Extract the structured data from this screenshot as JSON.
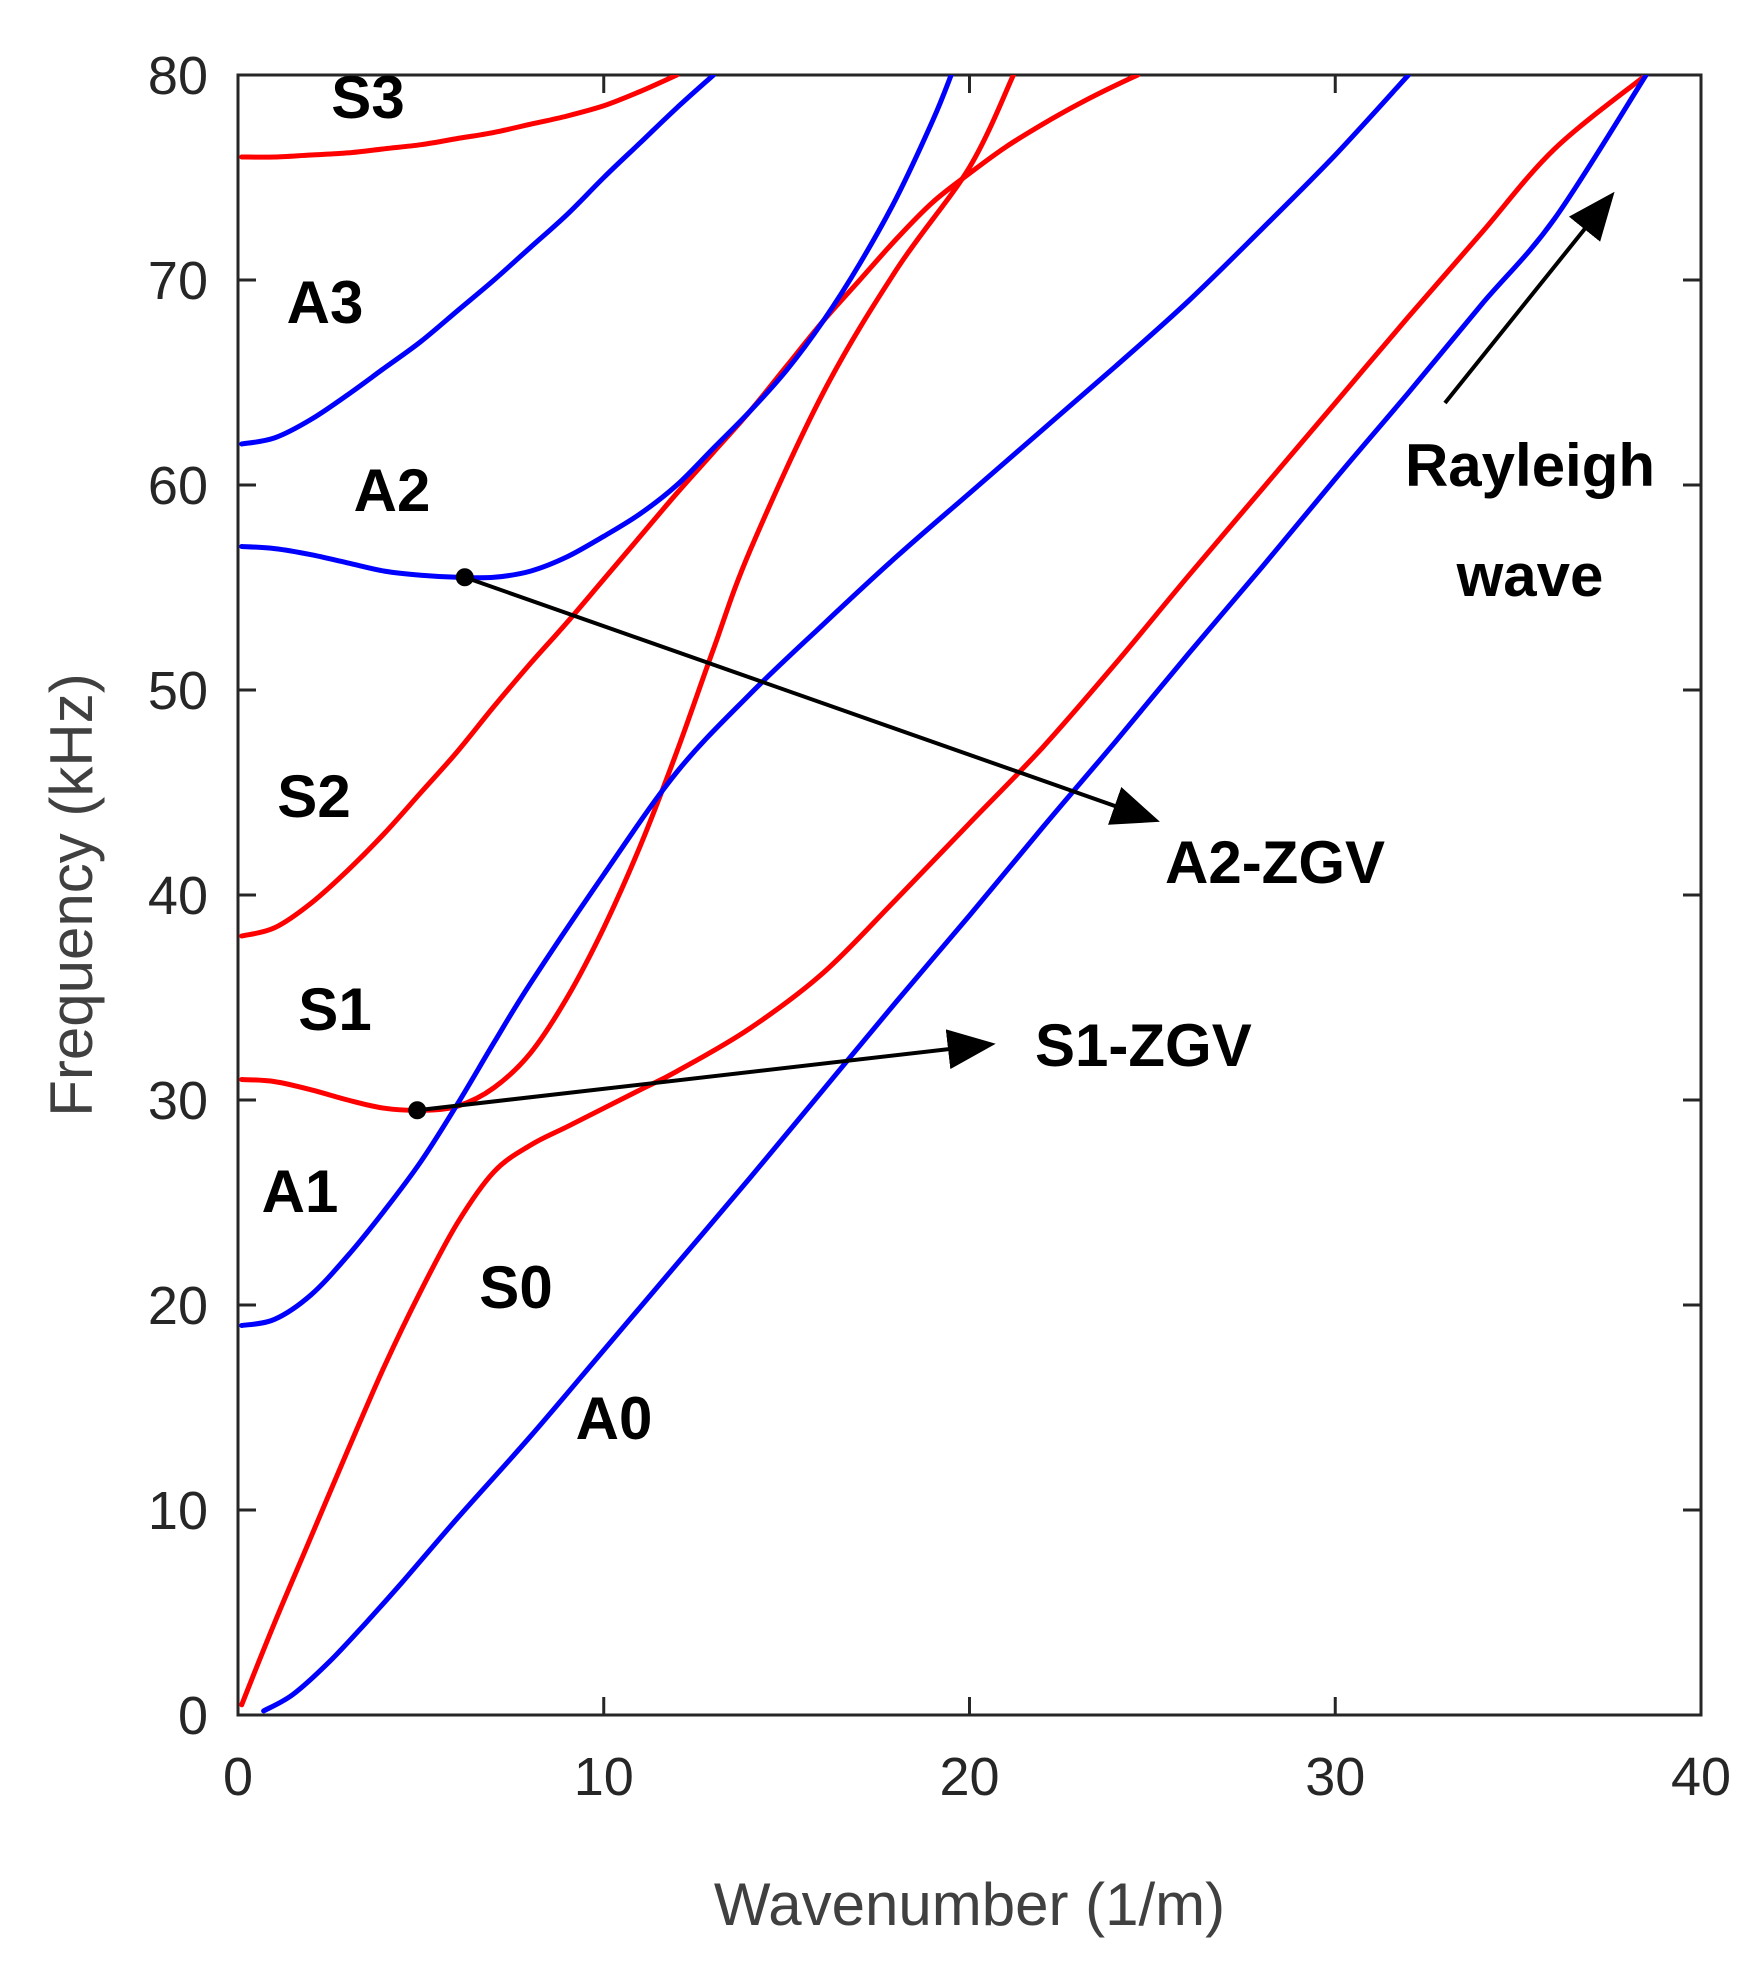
{
  "chart_data": {
    "type": "line",
    "title": "",
    "xlabel": "Wavenumber (1/m)",
    "ylabel": "Frequency (kHz)",
    "xlim": [
      0,
      40
    ],
    "ylim": [
      0,
      80
    ],
    "xticks": [
      0,
      10,
      20,
      30,
      40
    ],
    "yticks": [
      0,
      10,
      20,
      30,
      40,
      50,
      60,
      70,
      80
    ],
    "grid": false,
    "colors": {
      "symmetric": "#ff0000",
      "antisymmetric": "#0000ff",
      "annotation": "#000000",
      "axis": "#262626"
    },
    "series": [
      {
        "name": "S0",
        "family": "symmetric",
        "label": "S0",
        "x": [
          0.1,
          1,
          2,
          3,
          4,
          5,
          6,
          7,
          8,
          9,
          10,
          11,
          12,
          14,
          16,
          18,
          20,
          22,
          24,
          26,
          28,
          30,
          32,
          34,
          36,
          38.5
        ],
        "y": [
          0.5,
          4.5,
          8.7,
          12.9,
          17.0,
          20.7,
          24.0,
          26.5,
          27.8,
          28.7,
          29.6,
          30.5,
          31.4,
          33.5,
          36.2,
          39.8,
          43.5,
          47.2,
          51.3,
          55.6,
          59.8,
          64.0,
          68.2,
          72.3,
          76.4,
          80.0
        ]
      },
      {
        "name": "A0",
        "family": "antisymmetric",
        "label": "A0",
        "x": [
          0.7,
          1.5,
          2.5,
          3.5,
          4.5,
          6,
          8,
          10,
          12,
          14,
          16,
          18,
          20,
          22,
          24,
          26,
          28,
          30,
          32,
          34,
          36,
          38.5
        ],
        "y": [
          0.2,
          1.0,
          2.6,
          4.5,
          6.5,
          9.6,
          13.6,
          17.8,
          22.0,
          26.2,
          30.5,
          34.8,
          39.0,
          43.3,
          47.5,
          51.8,
          56.0,
          60.3,
          64.5,
          68.8,
          73.0,
          80.0
        ]
      },
      {
        "name": "S1",
        "family": "symmetric",
        "label": "S1",
        "x": [
          0.1,
          1,
          2,
          3,
          4,
          5,
          6,
          7,
          8,
          9,
          10,
          11,
          12,
          13,
          14,
          16,
          18,
          20,
          21.2
        ],
        "y": [
          31.0,
          30.9,
          30.5,
          30.0,
          29.6,
          29.5,
          29.7,
          30.6,
          32.3,
          35.0,
          38.4,
          42.4,
          47.0,
          52.0,
          56.8,
          64.5,
          70.5,
          75.5,
          80.0
        ]
      },
      {
        "name": "A1",
        "family": "antisymmetric",
        "label": "A1",
        "x": [
          0.1,
          1,
          2,
          3,
          4,
          5,
          6,
          7,
          8,
          10,
          12,
          14,
          16,
          18,
          20,
          22,
          24,
          26,
          28,
          30,
          32
        ],
        "y": [
          19.0,
          19.3,
          20.5,
          22.4,
          24.6,
          27.0,
          29.8,
          32.8,
          35.7,
          41.0,
          46.0,
          49.8,
          53.2,
          56.5,
          59.6,
          62.7,
          65.8,
          69.0,
          72.5,
          76.1,
          80.0
        ]
      },
      {
        "name": "S2",
        "family": "symmetric",
        "label": "S2",
        "x": [
          0.1,
          1,
          2,
          3,
          4,
          5,
          6,
          7,
          8,
          9,
          10,
          11,
          12,
          13,
          14,
          15,
          16,
          17,
          18,
          19,
          20,
          21,
          22,
          23,
          24,
          24.6
        ],
        "y": [
          38.0,
          38.4,
          39.6,
          41.2,
          43.0,
          45.0,
          47.0,
          49.2,
          51.3,
          53.3,
          55.4,
          57.5,
          59.6,
          61.6,
          63.6,
          65.8,
          68.0,
          70.0,
          72.0,
          73.8,
          75.2,
          76.5,
          77.6,
          78.6,
          79.5,
          80.0
        ]
      },
      {
        "name": "A2",
        "family": "antisymmetric",
        "label": "A2",
        "x": [
          0.1,
          1,
          2,
          3,
          4,
          5,
          6,
          7,
          8,
          9,
          10,
          11,
          12,
          13,
          14,
          15,
          16,
          17,
          18,
          19,
          19.5
        ],
        "y": [
          57.0,
          56.9,
          56.6,
          56.2,
          55.8,
          55.6,
          55.5,
          55.5,
          55.8,
          56.5,
          57.5,
          58.6,
          60.0,
          61.8,
          63.6,
          65.6,
          68.0,
          70.8,
          74.0,
          77.8,
          80.0
        ]
      },
      {
        "name": "A3",
        "family": "antisymmetric",
        "label": "A3",
        "x": [
          0.1,
          1,
          2,
          3,
          4,
          5,
          6,
          7,
          8,
          9,
          10,
          11,
          12,
          13
        ],
        "y": [
          62.0,
          62.3,
          63.2,
          64.4,
          65.7,
          67.0,
          68.5,
          70.0,
          71.6,
          73.2,
          75.0,
          76.7,
          78.4,
          80.0
        ]
      },
      {
        "name": "S3",
        "family": "symmetric",
        "label": "S3",
        "x": [
          0.1,
          1,
          2,
          3,
          4,
          5,
          6,
          7,
          8,
          9,
          10,
          11,
          12
        ],
        "y": [
          76.0,
          76.0,
          76.1,
          76.2,
          76.4,
          76.6,
          76.9,
          77.2,
          77.6,
          78.0,
          78.5,
          79.2,
          80.0
        ]
      }
    ],
    "annotations": [
      {
        "name": "A2-ZGV",
        "text": "A2-ZGV",
        "point": {
          "x": 6.2,
          "y": 55.5
        },
        "arrow_to": {
          "x": 25.0,
          "y": 43.7
        }
      },
      {
        "name": "S1-ZGV",
        "text": "S1-ZGV",
        "point": {
          "x": 4.9,
          "y": 29.5
        },
        "arrow_to": {
          "x": 20.5,
          "y": 32.7
        }
      },
      {
        "name": "Rayleigh",
        "text_lines": [
          "Rayleigh",
          "wave"
        ],
        "arrow_from": {
          "x": 33.0,
          "y": 64.0
        },
        "arrow_to": {
          "x": 37.5,
          "y": 74.0
        }
      }
    ]
  }
}
